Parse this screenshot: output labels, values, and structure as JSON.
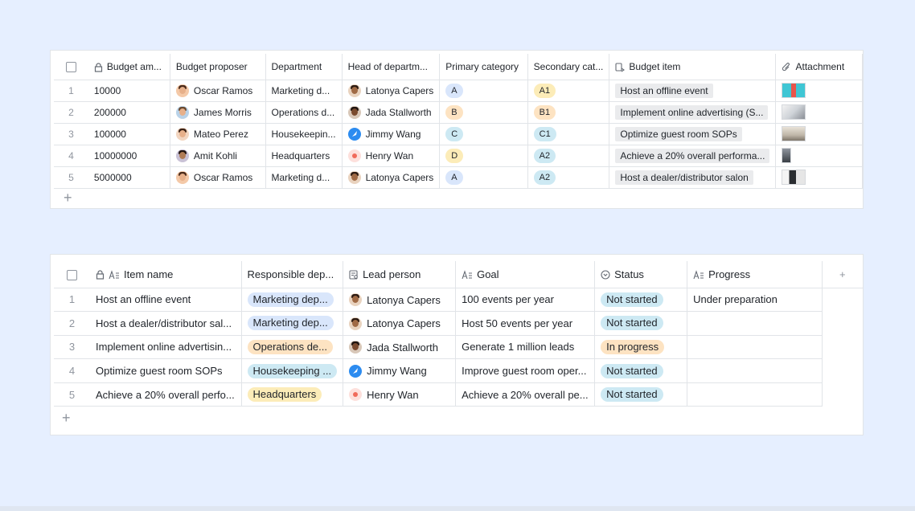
{
  "table1": {
    "headers": {
      "budget_amount": "Budget am...",
      "budget_proposer": "Budget proposer",
      "department": "Department",
      "head_of_department": "Head of departm...",
      "primary_category": "Primary category",
      "secondary_category": "Secondary cat...",
      "budget_item": "Budget item",
      "attachment": "Attachment"
    },
    "rows": [
      {
        "num": "1",
        "amount": "10000",
        "proposer": "Oscar Ramos",
        "department": "Marketing d...",
        "head": "Latonya Capers",
        "primary": "A",
        "secondary": "A1",
        "item": "Host an offline event"
      },
      {
        "num": "2",
        "amount": "200000",
        "proposer": "James Morris",
        "department": "Operations d...",
        "head": "Jada Stallworth",
        "primary": "B",
        "secondary": "B1",
        "item": "Implement online advertising (S..."
      },
      {
        "num": "3",
        "amount": "100000",
        "proposer": "Mateo Perez",
        "department": "Housekeepin...",
        "head": "Jimmy Wang",
        "primary": "C",
        "secondary": "C1",
        "item": "Optimize guest room SOPs"
      },
      {
        "num": "4",
        "amount": "10000000",
        "proposer": "Amit Kohli",
        "department": "Headquarters",
        "head": "Henry Wan",
        "primary": "D",
        "secondary": "A2",
        "item": "Achieve a 20% overall performa..."
      },
      {
        "num": "5",
        "amount": "5000000",
        "proposer": "Oscar Ramos",
        "department": "Marketing d...",
        "head": "Latonya Capers",
        "primary": "A",
        "secondary": "A2",
        "item": "Host a dealer/distributor salon"
      }
    ],
    "add_row": "+"
  },
  "table2": {
    "headers": {
      "item_name": "Item name",
      "responsible_department": "Responsible dep...",
      "lead_person": "Lead person",
      "goal": "Goal",
      "status": "Status",
      "progress": "Progress"
    },
    "rows": [
      {
        "num": "1",
        "item": "Host an offline event",
        "department": "Marketing dep...",
        "lead": "Latonya Capers",
        "goal": "100 events per year",
        "status": "Not started",
        "progress": "Under preparation"
      },
      {
        "num": "2",
        "item": "Host a dealer/distributor sal...",
        "department": "Marketing dep...",
        "lead": "Latonya Capers",
        "goal": "Host 50 events per year",
        "status": "Not started",
        "progress": ""
      },
      {
        "num": "3",
        "item": "Implement online advertisin...",
        "department": "Operations de...",
        "lead": "Jada Stallworth",
        "goal": "Generate 1 million leads",
        "status": "In progress",
        "progress": ""
      },
      {
        "num": "4",
        "item": "Optimize guest room SOPs",
        "department": "Housekeeping ...",
        "lead": "Jimmy Wang",
        "goal": "Improve guest room oper...",
        "status": "Not started",
        "progress": ""
      },
      {
        "num": "5",
        "item": "Achieve a 20% overall perfo...",
        "department": "Headquarters",
        "lead": "Henry Wan",
        "goal": "Achieve a 20% overall pe...",
        "status": "Not started",
        "progress": ""
      }
    ],
    "add_row": "+",
    "add_column": "+"
  },
  "colors": {
    "background": "#e6efff",
    "tag_blue": "#d9e6fb",
    "tag_orange": "#fde3c2",
    "tag_teal": "#cde9f3",
    "tag_yellow": "#fcecb8",
    "status_not_started": "#cde9f3",
    "status_in_progress": "#fde3c2"
  }
}
